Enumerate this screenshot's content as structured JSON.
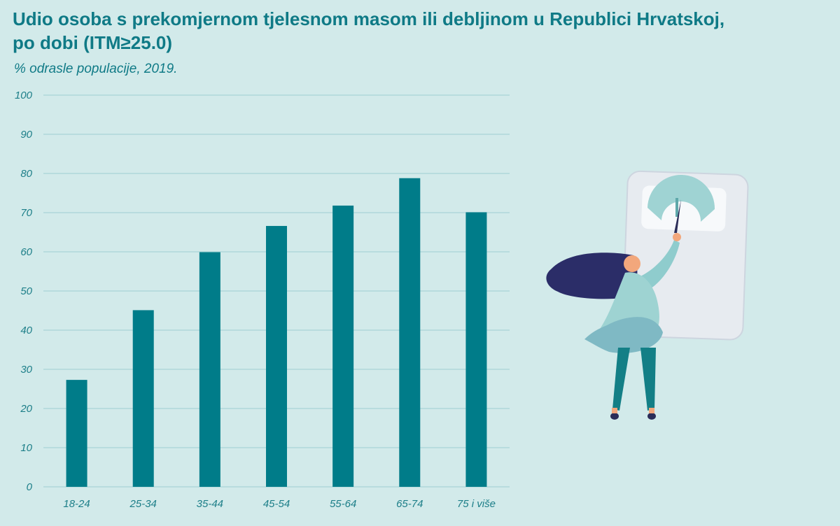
{
  "title_line1": "Udio osoba s prekomjernom tjelesnom masom ili debljinom u Republici Hrvatskoj,",
  "title_line2": "po dobi (ITM≥25.0)",
  "subtitle": "% odrasle populacije, 2019.",
  "colors": {
    "background": "#d2eaea",
    "bar": "#007c89",
    "title": "#0f7a86",
    "grid": "#9fcfd1"
  },
  "illustration": {
    "icon": "woman-adjusting-scale-illustration"
  },
  "chart_data": {
    "type": "bar",
    "categories": [
      "18-24",
      "25-34",
      "35-44",
      "45-54",
      "55-64",
      "65-74",
      "75 i više"
    ],
    "values": [
      27.3,
      45.1,
      59.9,
      66.6,
      71.8,
      78.8,
      70.1
    ],
    "ylim": [
      0,
      100
    ],
    "yticks": [
      0,
      10,
      20,
      30,
      40,
      50,
      60,
      70,
      80,
      90,
      100
    ],
    "grid": true,
    "legend": "none"
  }
}
